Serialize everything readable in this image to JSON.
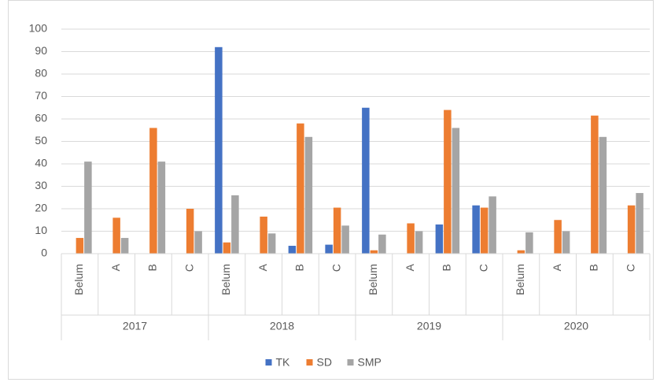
{
  "chart_data": {
    "type": "bar",
    "categories": [
      "Belum",
      "A",
      "B",
      "C",
      "Belum",
      "A",
      "B",
      "C",
      "Belum",
      "A",
      "B",
      "C",
      "Belum",
      "A",
      "B",
      "C"
    ],
    "groups": [
      "2017",
      "2018",
      "2019",
      "2020"
    ],
    "series": [
      {
        "name": "TK",
        "color": "#4472c4",
        "values": [
          0,
          0,
          0,
          0,
          92,
          0,
          3.5,
          4,
          65,
          0,
          13,
          21.5,
          0,
          0,
          0,
          0
        ]
      },
      {
        "name": "SD",
        "color": "#ed7d31",
        "values": [
          7,
          16,
          56,
          20,
          5,
          16.5,
          58,
          20.5,
          1.5,
          13.5,
          64,
          20.5,
          1.5,
          15,
          61.5,
          21.5
        ]
      },
      {
        "name": "SMP",
        "color": "#a5a5a5",
        "values": [
          41,
          7,
          41,
          10,
          26,
          9,
          52,
          12.5,
          8.5,
          10,
          56,
          25.5,
          9.5,
          10,
          52,
          27
        ]
      }
    ],
    "ylim": [
      0,
      100
    ],
    "yticks": [
      0,
      10,
      20,
      30,
      40,
      50,
      60,
      70,
      80,
      90,
      100
    ],
    "grid": true,
    "legend": "bottom"
  }
}
